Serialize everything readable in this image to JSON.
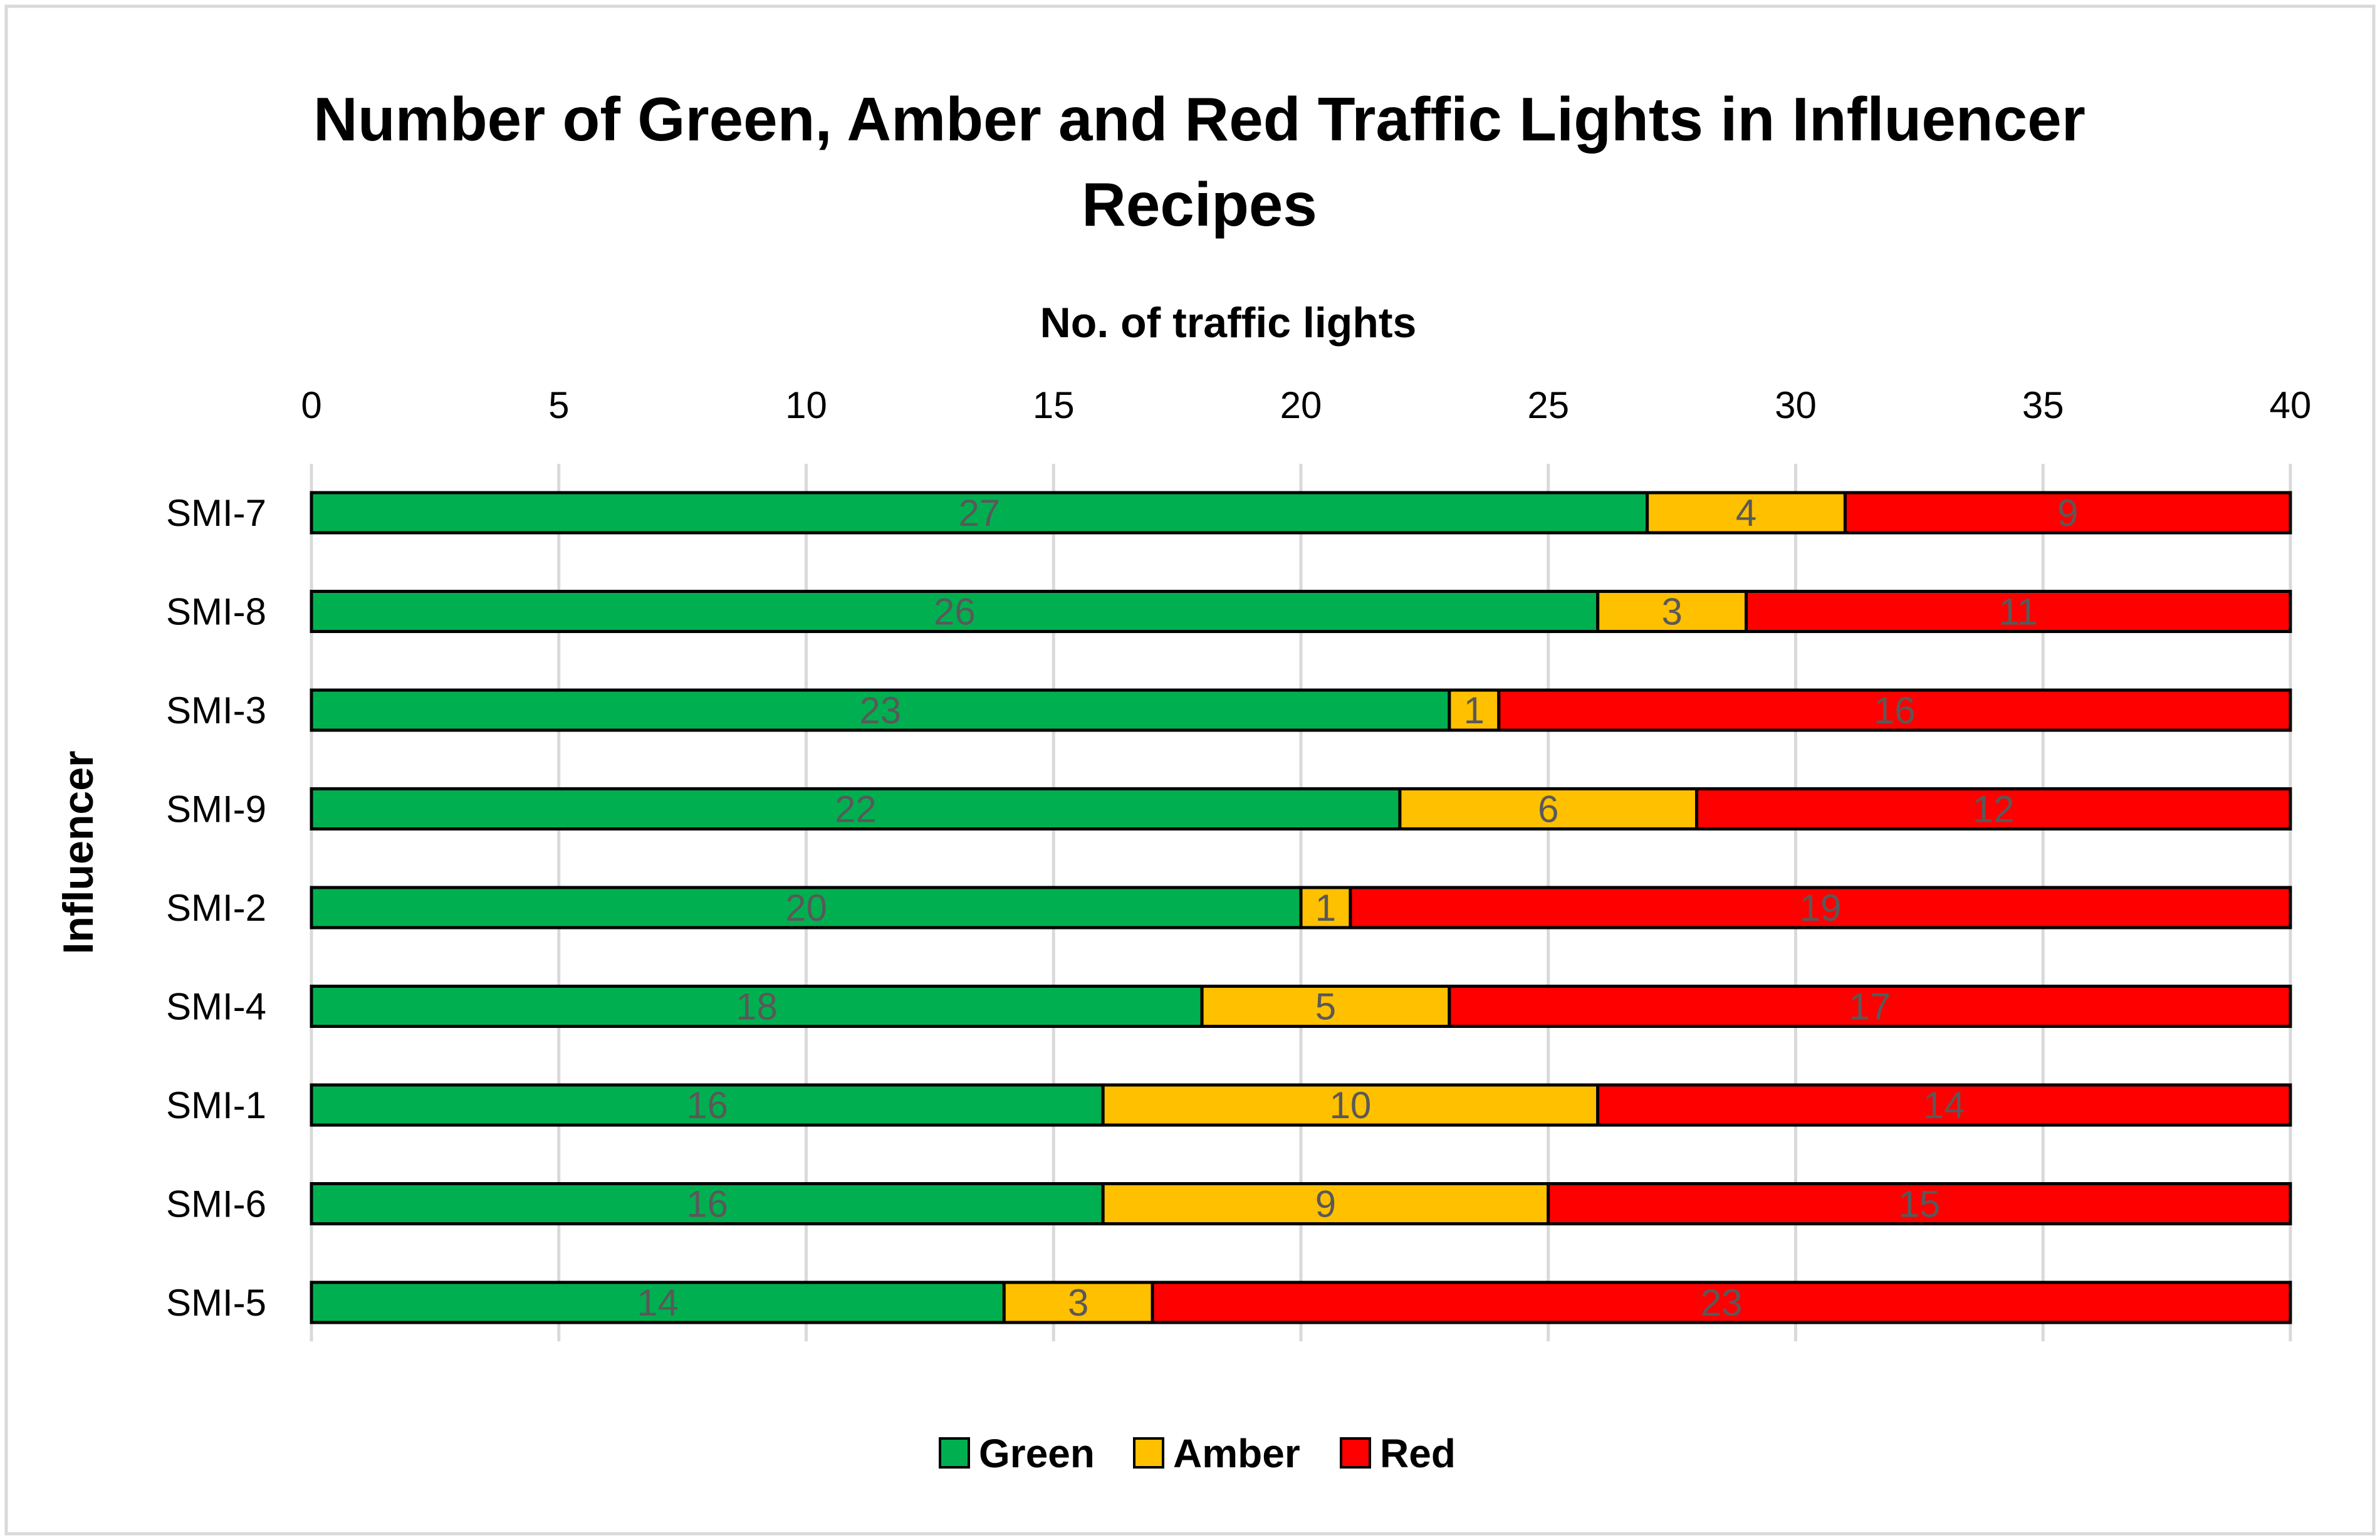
{
  "chart_data": {
    "type": "bar",
    "orientation": "horizontal",
    "stacked": true,
    "title_lines": [
      "Number of Green, Amber and Red Traffic Lights in Influencer",
      "Recipes"
    ],
    "xlabel": "No. of traffic lights",
    "ylabel": "Influencer",
    "xlim": [
      0,
      40
    ],
    "xticks": [
      "0",
      "5",
      "10",
      "15",
      "20",
      "25",
      "30",
      "35",
      "40"
    ],
    "xaxis_position": "top",
    "grid": true,
    "legend_position": "bottom",
    "categories": [
      "SMI-7",
      "SMI-8",
      "SMI-3",
      "SMI-9",
      "SMI-2",
      "SMI-4",
      "SMI-1",
      "SMI-6",
      "SMI-5"
    ],
    "series": [
      {
        "name": "Green",
        "color": "#00B050",
        "values": [
          27,
          26,
          23,
          22,
          20,
          18,
          16,
          16,
          14
        ]
      },
      {
        "name": "Amber",
        "color": "#FFC000",
        "values": [
          4,
          3,
          1,
          6,
          1,
          5,
          10,
          9,
          3
        ]
      },
      {
        "name": "Red",
        "color": "#FF0000",
        "values": [
          9,
          11,
          16,
          12,
          19,
          17,
          14,
          15,
          23
        ]
      }
    ],
    "data_label_color": "#595959",
    "border_color": "#D9D9D9",
    "gridline_color": "#D9D9D9"
  }
}
